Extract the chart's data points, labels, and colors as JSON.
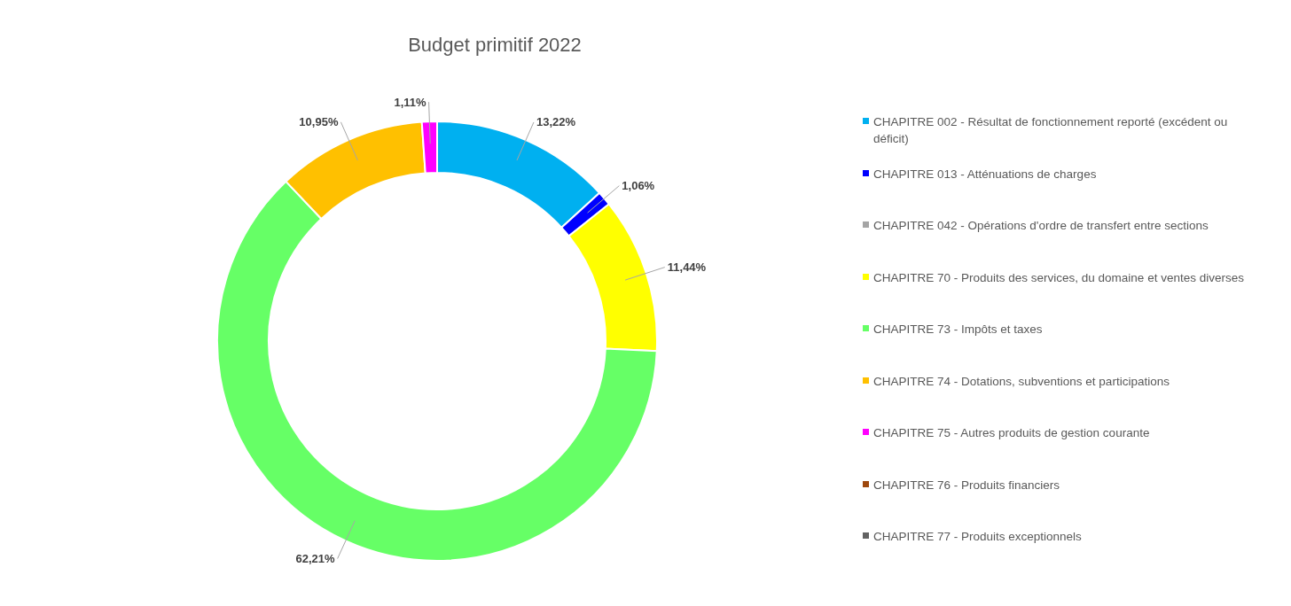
{
  "chart_data": {
    "type": "donut",
    "title": "Budget primitif 2022",
    "categories": [
      "CHAPITRE 002 - Résultat de fonctionnement reporté (excédent ou déficit)",
      "CHAPITRE 013 - Atténuations de charges",
      "CHAPITRE 042 - Opérations d'ordre de transfert entre sections",
      "CHAPITRE 70 - Produits des services, du domaine et ventes diverses",
      "CHAPITRE 73 - Impôts et taxes",
      "CHAPITRE 74 - Dotations, subventions et participations",
      "CHAPITRE 75 - Autres produits de gestion courante",
      "CHAPITRE 76 - Produits financiers",
      "CHAPITRE 77 - Produits exceptionnels"
    ],
    "values": [
      13.22,
      1.06,
      0,
      11.44,
      62.21,
      10.95,
      1.11,
      0,
      0
    ],
    "colors": [
      "#00b0f0",
      "#0000ff",
      "#a5a5a5",
      "#ffff00",
      "#66ff66",
      "#ffc000",
      "#ff00ff",
      "#9e480e",
      "#636363"
    ],
    "value_labels": [
      "13,22%",
      "1,06%",
      null,
      "11,44%",
      "62,21%",
      "10,95%",
      "1,11%",
      null,
      null
    ],
    "legend": "right"
  }
}
